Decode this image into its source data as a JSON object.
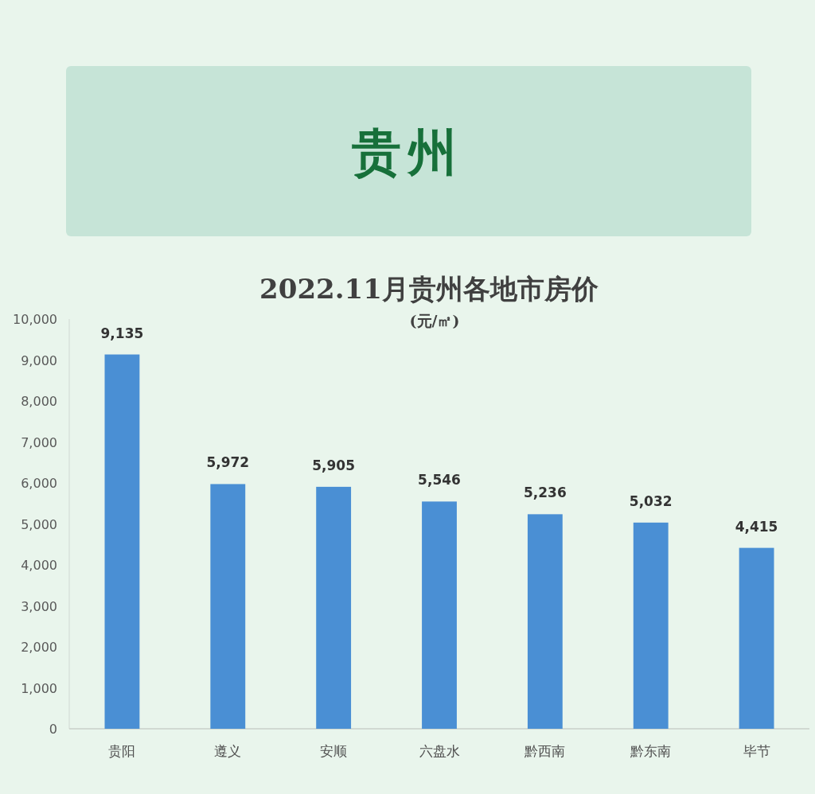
{
  "chart_data": {
    "type": "bar",
    "title": "2022.11月贵州各地市房价",
    "subtitle": "(元/㎡)",
    "annotations": [
      "贵州"
    ],
    "categories": [
      "贵阳",
      "遵义",
      "安顺",
      "六盘水",
      "黔西南",
      "黔东南",
      "毕节"
    ],
    "series": [
      {
        "color": "#4a8fd4",
        "values": [
          9135,
          5972,
          5905,
          5546,
          5236,
          5032,
          4415
        ],
        "value_labels": [
          "9,135",
          "5,972",
          "5,905",
          "5,546",
          "5,236",
          "5,032",
          "4,415"
        ]
      }
    ],
    "ylim": [
      0,
      10000
    ],
    "yticks": [
      0,
      {
        "value": 1000,
        "label": "1,000"
      },
      {
        "value": 2000,
        "label": "2,000"
      },
      {
        "value": 3000,
        "label": "3,000"
      },
      {
        "value": 4000,
        "label": "4,000"
      },
      {
        "value": 5000,
        "label": "5,000"
      },
      {
        "value": 6000,
        "label": "6,000"
      },
      {
        "value": 7000,
        "label": "7,000"
      },
      {
        "value": 8000,
        "label": "8,000"
      },
      {
        "value": 9000,
        "label": "9,000"
      },
      {
        "value": 10000,
        "label": "10,000"
      }
    ],
    "grid": false
  }
}
